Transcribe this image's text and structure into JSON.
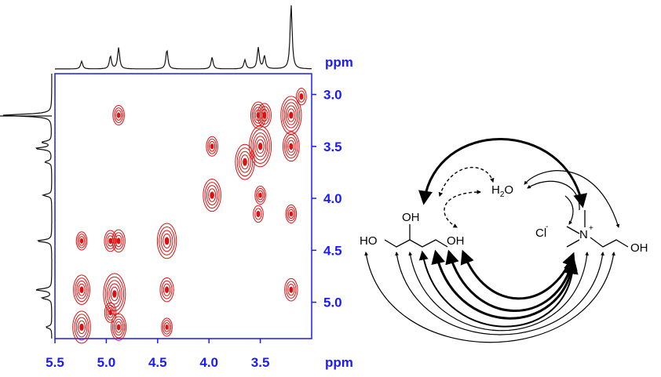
{
  "chart_data": {
    "type": "heatmap",
    "subtype": "2D NOESY NMR contour spectrum",
    "xlabel": "ppm",
    "ylabel": "ppm",
    "x_ticks": [
      5.5,
      5.0,
      4.5,
      4.0,
      3.5
    ],
    "y_ticks": [
      3.0,
      3.5,
      4.0,
      4.5,
      5.0
    ],
    "xlim": [
      5.5,
      3.0
    ],
    "ylim": [
      2.8,
      5.35
    ],
    "x_reversed": true,
    "grid": false,
    "colors": {
      "contour": "#e01010",
      "axis_text": "#1a1aff",
      "trace": "#000000"
    },
    "peaks_1d": [
      {
        "ppm": 5.24,
        "height": 0.12
      },
      {
        "ppm": 4.96,
        "height": 0.2
      },
      {
        "ppm": 4.88,
        "height": 0.33
      },
      {
        "ppm": 4.41,
        "height": 0.3
      },
      {
        "ppm": 3.97,
        "height": 0.18
      },
      {
        "ppm": 3.65,
        "height": 0.14
      },
      {
        "ppm": 3.52,
        "height": 0.33
      },
      {
        "ppm": 3.46,
        "height": 0.2
      },
      {
        "ppm": 3.2,
        "height": 1.0
      }
    ],
    "cross_peaks": [
      {
        "x": 4.88,
        "y": 3.2,
        "size": 0.25
      },
      {
        "x": 4.88,
        "y": 4.41,
        "size": 0.35
      },
      {
        "x": 4.96,
        "y": 4.41,
        "size": 0.3
      },
      {
        "x": 5.24,
        "y": 4.41,
        "size": 0.2
      },
      {
        "x": 4.41,
        "y": 4.88,
        "size": 0.4
      },
      {
        "x": 4.41,
        "y": 5.24,
        "size": 0.2
      },
      {
        "x": 3.97,
        "y": 3.5,
        "size": 0.25
      },
      {
        "x": 3.5,
        "y": 3.97,
        "size": 0.2
      },
      {
        "x": 3.2,
        "y": 3.5,
        "size": 0.6
      },
      {
        "x": 3.2,
        "y": 4.15,
        "size": 0.2
      },
      {
        "x": 3.2,
        "y": 4.88,
        "size": 0.35
      },
      {
        "x": 3.52,
        "y": 3.2,
        "size": 0.5
      },
      {
        "x": 3.46,
        "y": 3.2,
        "size": 0.4
      },
      {
        "x": 3.52,
        "y": 4.15,
        "size": 0.15
      },
      {
        "x": 5.24,
        "y": 4.88,
        "size": 0.6
      },
      {
        "x": 4.88,
        "y": 5.24,
        "size": 0.5
      },
      {
        "x": 3.1,
        "y": 3.02,
        "size": 0.15
      },
      {
        "x": 4.96,
        "y": 5.1,
        "size": 0.25
      }
    ],
    "diagonal_peaks": [
      {
        "x": 5.24,
        "size": 0.7
      },
      {
        "x": 4.92,
        "size": 1.0
      },
      {
        "x": 4.41,
        "size": 0.8
      },
      {
        "x": 3.97,
        "size": 0.7
      },
      {
        "x": 3.65,
        "size": 0.8
      },
      {
        "x": 3.5,
        "size": 1.0
      },
      {
        "x": 3.2,
        "size": 0.9
      }
    ]
  },
  "molecule": {
    "water": "H2O",
    "chloride": "Cl",
    "nitrogen": "N",
    "oh_labels": [
      "HO",
      "OH",
      "OH",
      "OH"
    ]
  }
}
